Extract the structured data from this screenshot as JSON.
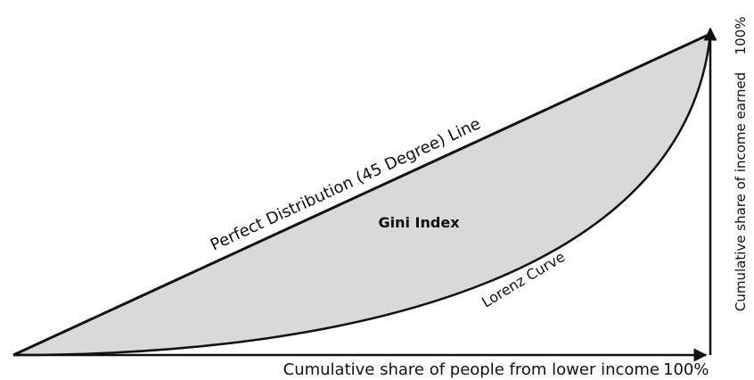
{
  "diagram": {
    "diagonal_label": "Perfect Distribution (45 Degree) Line",
    "area_label": "Gini Index",
    "curve_label": "Lorenz Curve",
    "x_axis": {
      "label": "Cumulative share of people from lower income",
      "end_label": "100%"
    },
    "y_axis": {
      "label": "Cumulative share of income earned",
      "end_label": "100%"
    }
  }
}
